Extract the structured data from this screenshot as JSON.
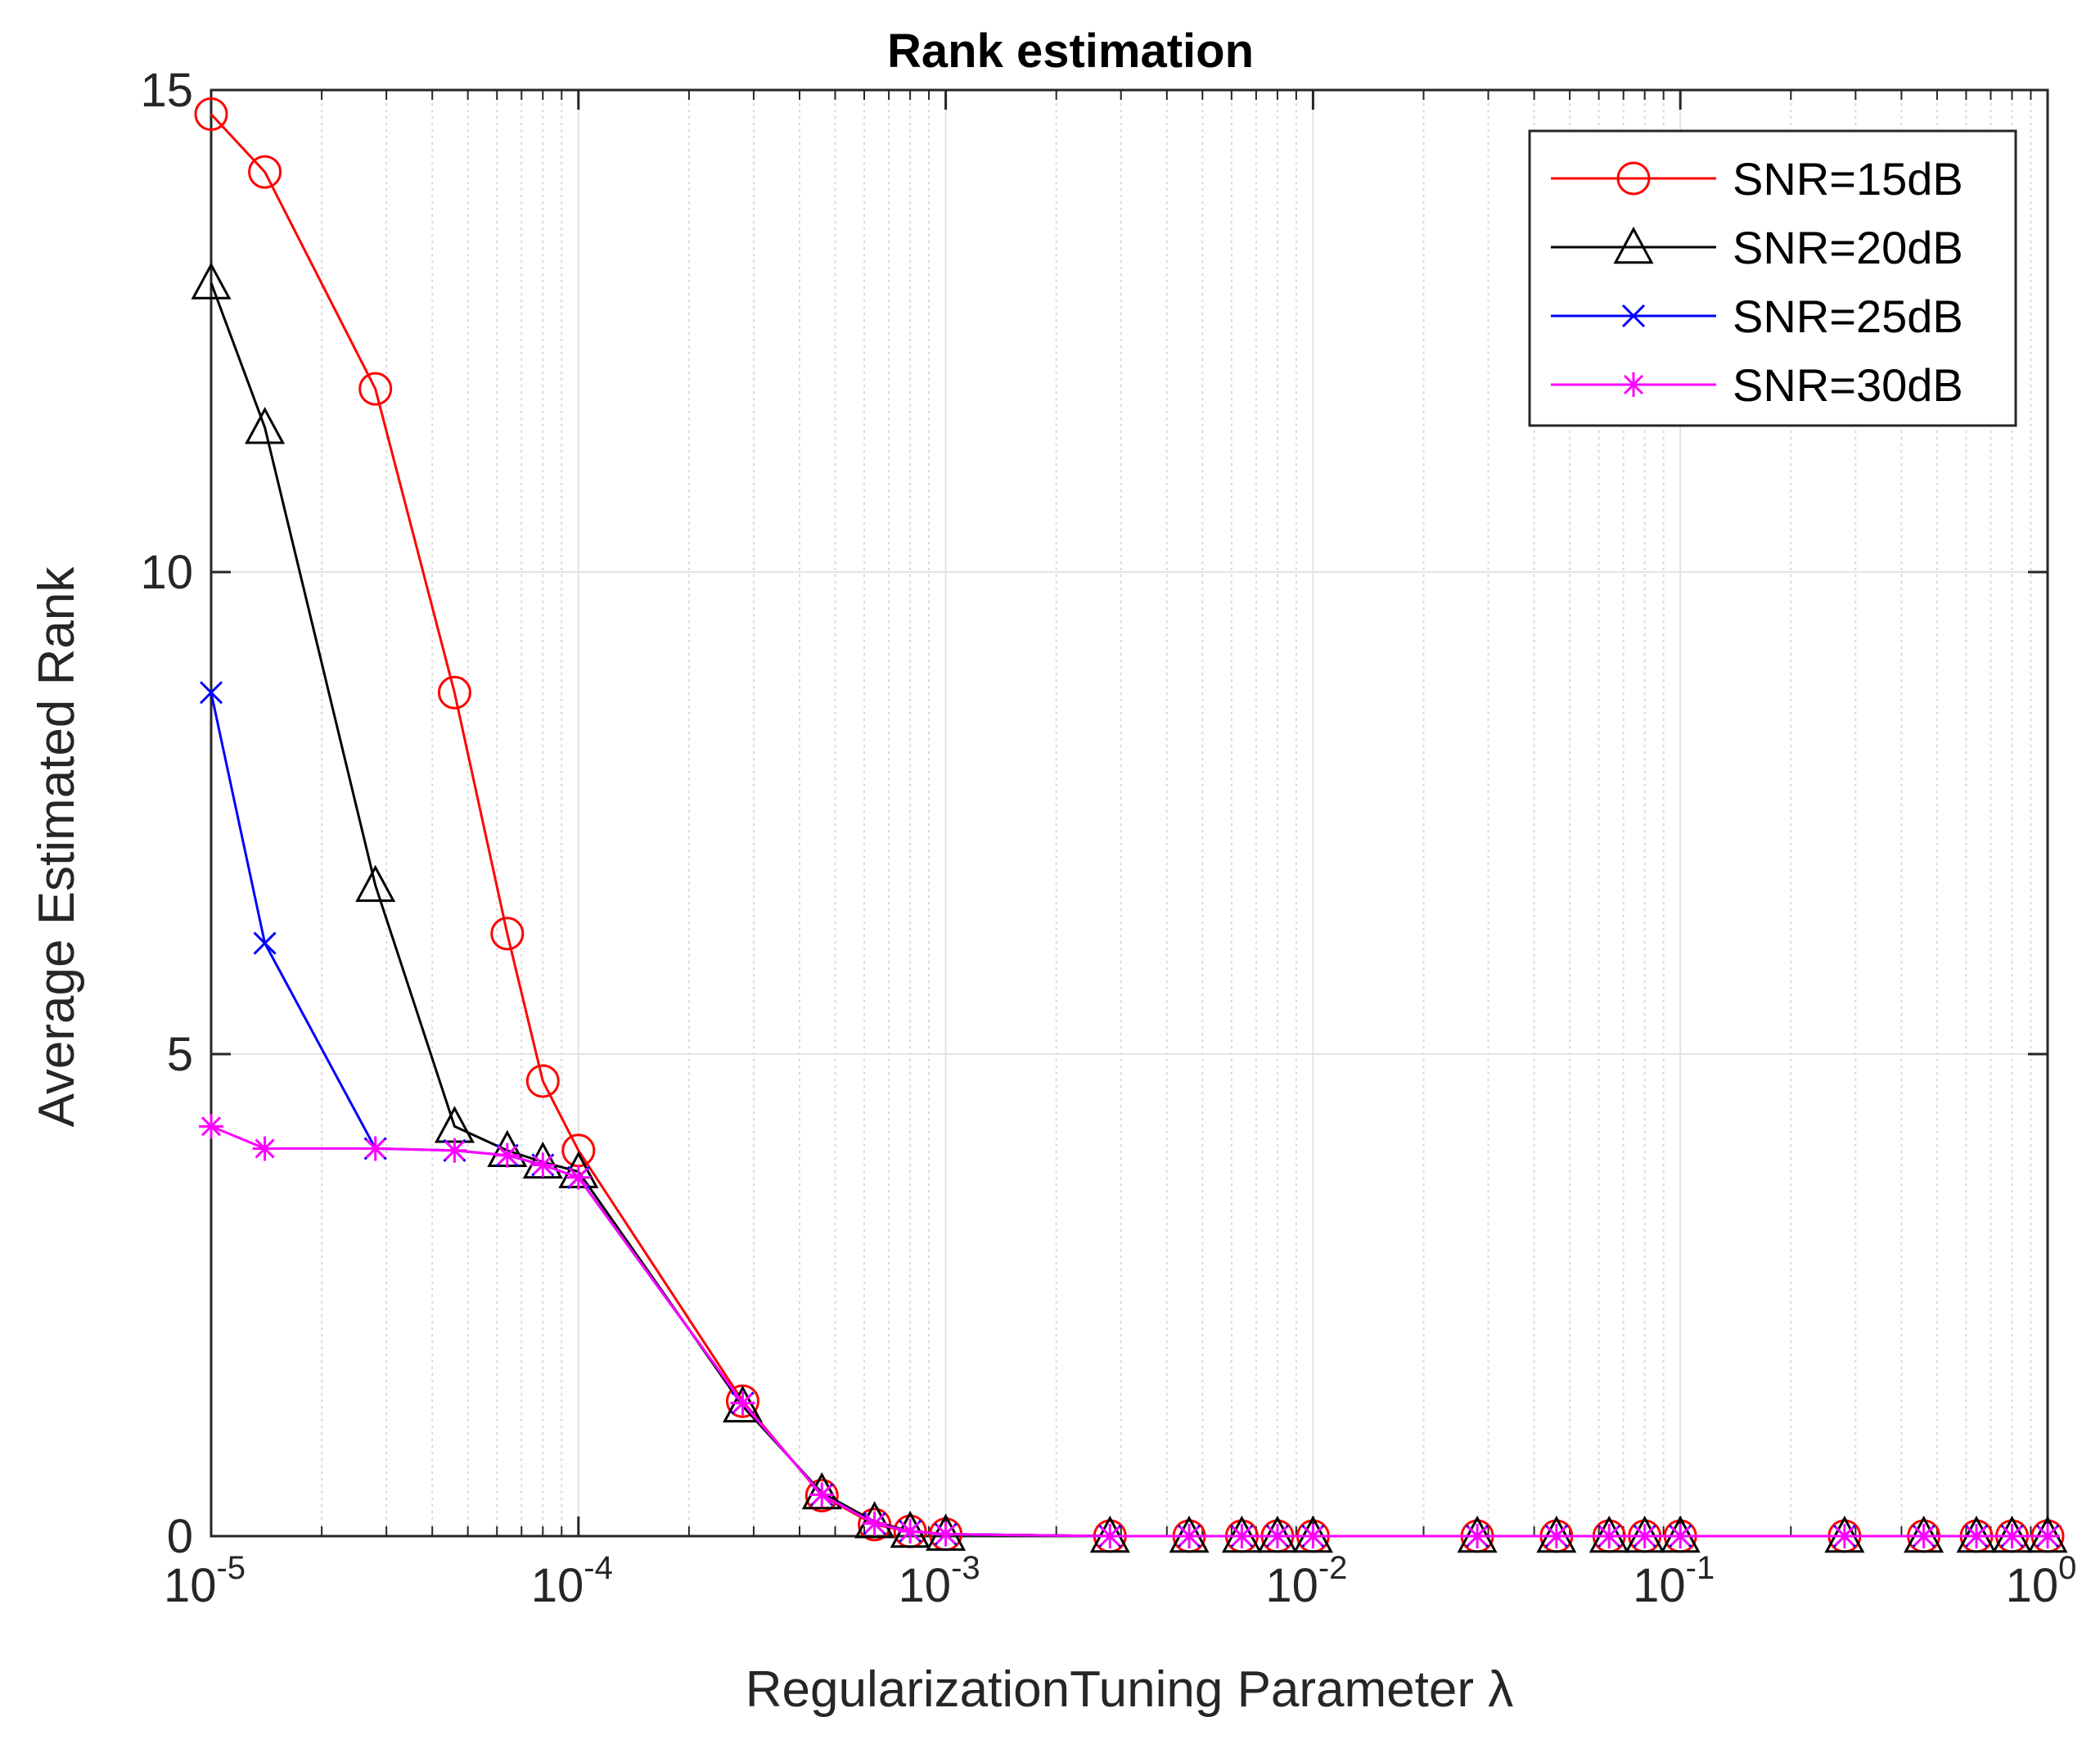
{
  "chart_data": {
    "type": "line",
    "title": "Rank estimation",
    "xlabel": "RegularizationTuning Parameter  λ",
    "ylabel": "Average Estimated Rank",
    "xscale": "log",
    "xlim": [
      1e-05,
      1
    ],
    "ylim": [
      0,
      15
    ],
    "grid": true,
    "legend_position": "top-right",
    "x_ticks": [
      {
        "value": 1e-05,
        "mantissa": "10",
        "exponent": "-5"
      },
      {
        "value": 0.0001,
        "mantissa": "10",
        "exponent": "-4"
      },
      {
        "value": 0.001,
        "mantissa": "10",
        "exponent": "-3"
      },
      {
        "value": 0.01,
        "mantissa": "10",
        "exponent": "-2"
      },
      {
        "value": 0.1,
        "mantissa": "10",
        "exponent": "-1"
      },
      {
        "value": 1,
        "mantissa": "10",
        "exponent": "0"
      }
    ],
    "y_ticks": [
      {
        "value": 0,
        "label": "0"
      },
      {
        "value": 5,
        "label": "5"
      },
      {
        "value": 10,
        "label": "10"
      },
      {
        "value": 15,
        "label": "15"
      }
    ],
    "x": [
      1e-05,
      1.4e-05,
      2.8e-05,
      4.6e-05,
      6.4e-05,
      8e-05,
      0.0001,
      0.00028,
      0.00046,
      0.00064,
      0.0008,
      0.001,
      0.0028,
      0.0046,
      0.0064,
      0.008,
      0.01,
      0.028,
      0.046,
      0.064,
      0.08,
      0.1,
      0.28,
      0.46,
      0.64,
      0.8,
      1
    ],
    "series": [
      {
        "name": "SNR=15dB",
        "color": "#ff0000",
        "marker": "circle",
        "values": [
          14.75,
          14.15,
          11.9,
          8.75,
          6.25,
          4.72,
          4.0,
          1.4,
          0.42,
          0.12,
          0.05,
          0.02,
          0,
          0,
          0,
          0,
          0,
          0,
          0,
          0,
          0,
          0,
          0,
          0,
          0,
          0,
          0
        ]
      },
      {
        "name": "SNR=20dB",
        "color": "#000000",
        "marker": "triangle",
        "values": [
          13.0,
          11.5,
          6.75,
          4.25,
          4.0,
          3.88,
          3.78,
          1.35,
          0.45,
          0.15,
          0.05,
          0.02,
          0,
          0,
          0,
          0,
          0,
          0,
          0,
          0,
          0,
          0,
          0,
          0,
          0,
          0,
          0
        ]
      },
      {
        "name": "SNR=25dB",
        "color": "#0000ff",
        "marker": "x",
        "values": [
          8.75,
          6.15,
          4.02,
          4.0,
          3.95,
          3.85,
          3.72,
          1.38,
          0.43,
          0.13,
          0.05,
          0.02,
          0,
          0,
          0,
          0,
          0,
          0,
          0,
          0,
          0,
          0,
          0,
          0,
          0,
          0,
          0
        ]
      },
      {
        "name": "SNR=30dB",
        "color": "#ff00ff",
        "marker": "asterisk",
        "values": [
          4.25,
          4.02,
          4.02,
          4.0,
          3.95,
          3.85,
          3.72,
          1.38,
          0.43,
          0.13,
          0.05,
          0.02,
          0,
          0,
          0,
          0,
          0,
          0,
          0,
          0,
          0,
          0,
          0,
          0,
          0,
          0,
          0
        ]
      }
    ]
  }
}
